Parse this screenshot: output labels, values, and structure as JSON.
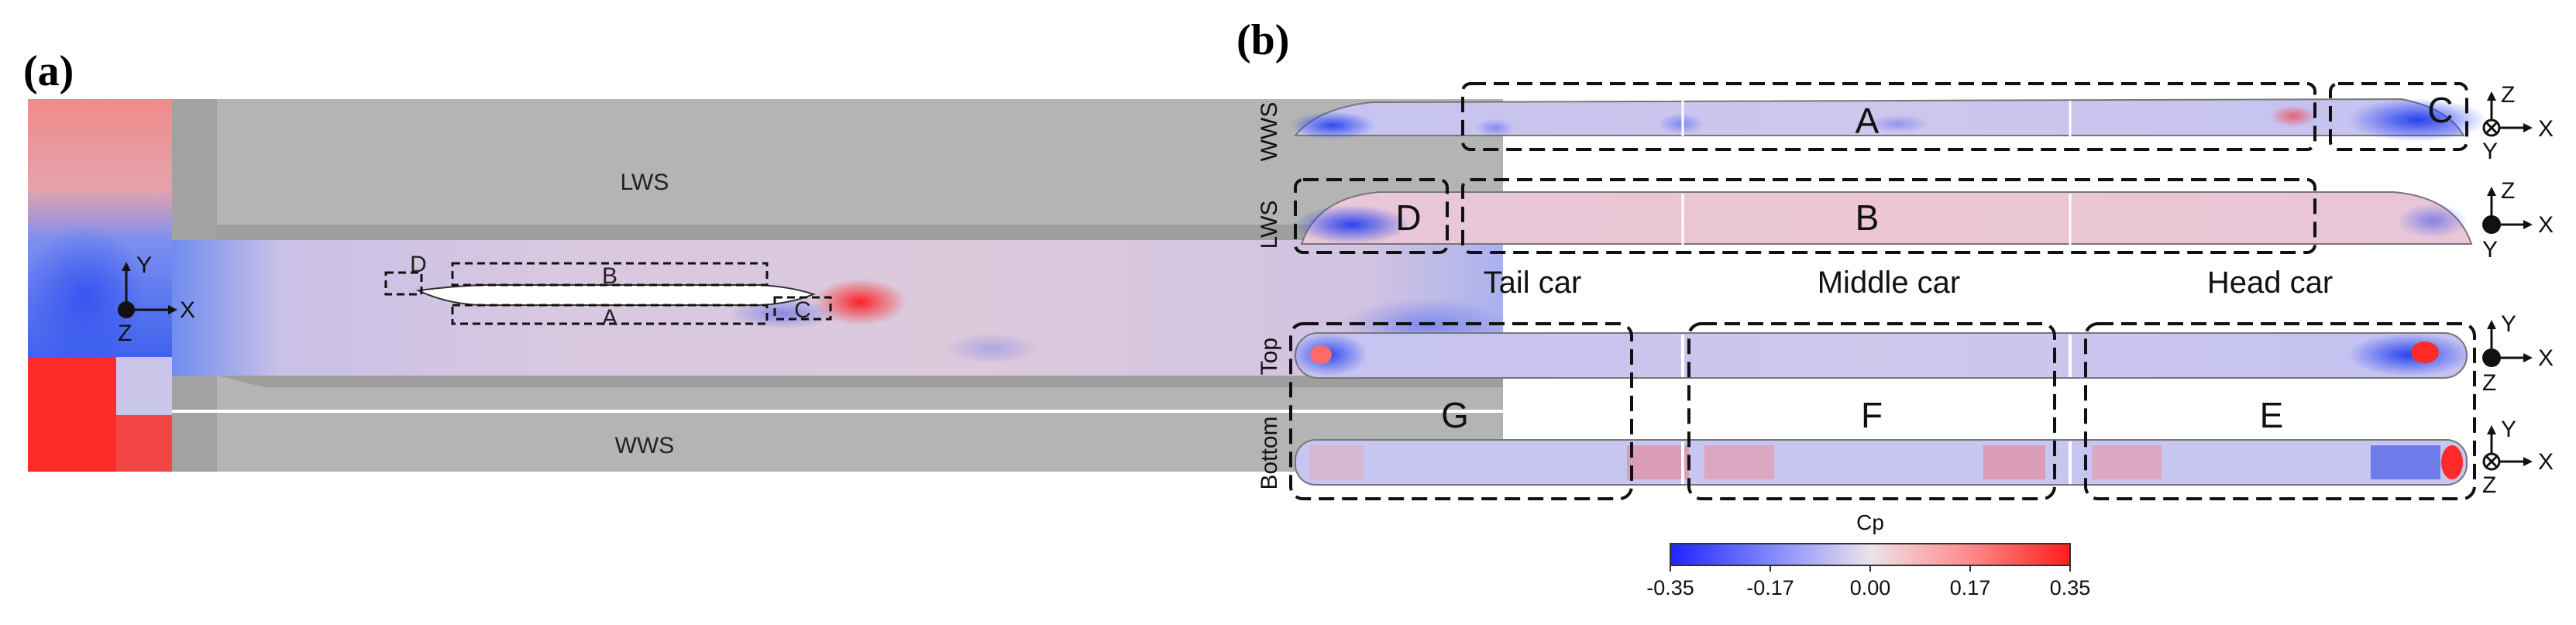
{
  "panel_a": {
    "label": "(a)",
    "wall_labels": {
      "lws": "LWS",
      "wws": "WWS"
    },
    "region_labels": {
      "a": "A",
      "b": "B",
      "c": "C",
      "d": "D"
    },
    "axes": {
      "y": "Y",
      "x": "X",
      "z": "Z"
    }
  },
  "panel_b": {
    "label": "(b)",
    "row_labels": {
      "wws": "WWS",
      "lws": "LWS",
      "top": "Top",
      "bottom": "Bottom"
    },
    "region_labels": {
      "a": "A",
      "b": "B",
      "c": "C",
      "d": "D",
      "e": "E",
      "f": "F",
      "g": "G"
    },
    "car_labels": {
      "tail": "Tail car",
      "middle": "Middle car",
      "head": "Head car"
    },
    "axes": {
      "wws": {
        "up": "Z",
        "right": "X",
        "down": "Y"
      },
      "lws": {
        "up": "Z",
        "right": "X",
        "down": "Y"
      },
      "top": {
        "up": "Y",
        "right": "X",
        "down": "Z"
      },
      "bottom": {
        "up": "Y",
        "right": "X",
        "down": "Z"
      }
    }
  },
  "colorbar": {
    "title": "Cp",
    "ticks": [
      "-0.35",
      "-0.17",
      "0.00",
      "0.17",
      "0.35"
    ],
    "range": [
      -0.35,
      0.35
    ],
    "colors": {
      "low": "#1f24ff",
      "mid": "#e8dfe6",
      "high": "#ff2020"
    }
  }
}
